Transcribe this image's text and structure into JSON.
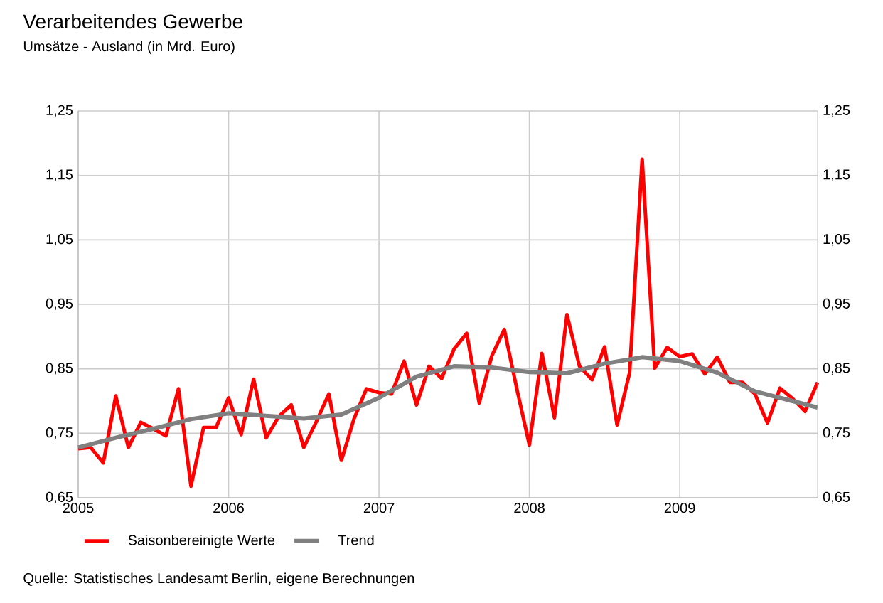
{
  "chart_data": {
    "type": "line",
    "title": "Verarbeitendes Gewerbe",
    "subtitle": "Umsätze - Ausland (in Mrd. Euro)",
    "x": [
      "2005-01",
      "2005-02",
      "2005-03",
      "2005-04",
      "2005-05",
      "2005-06",
      "2005-07",
      "2005-08",
      "2005-09",
      "2005-10",
      "2005-11",
      "2005-12",
      "2006-01",
      "2006-02",
      "2006-03",
      "2006-04",
      "2006-05",
      "2006-06",
      "2006-07",
      "2006-08",
      "2006-09",
      "2006-10",
      "2006-11",
      "2006-12",
      "2007-01",
      "2007-02",
      "2007-03",
      "2007-04",
      "2007-05",
      "2007-06",
      "2007-07",
      "2007-08",
      "2007-09",
      "2007-10",
      "2007-11",
      "2007-12",
      "2008-01",
      "2008-02",
      "2008-03",
      "2008-04",
      "2008-05",
      "2008-06",
      "2008-07",
      "2008-08",
      "2008-09",
      "2008-10",
      "2008-11",
      "2008-12",
      "2009-01",
      "2009-02",
      "2009-03",
      "2009-04",
      "2009-05",
      "2009-06",
      "2009-07",
      "2009-08",
      "2009-09",
      "2009-10",
      "2009-11",
      "2009-12"
    ],
    "series": [
      {
        "name": "Saisonbereinigte Werte",
        "color": "#ff0000",
        "values": [
          0.726,
          0.728,
          0.704,
          0.808,
          0.728,
          0.767,
          0.757,
          0.746,
          0.819,
          0.668,
          0.759,
          0.759,
          0.805,
          0.748,
          0.834,
          0.743,
          0.776,
          0.794,
          0.728,
          0.768,
          0.811,
          0.708,
          0.772,
          0.819,
          0.813,
          0.811,
          0.862,
          0.794,
          0.854,
          0.835,
          0.881,
          0.905,
          0.797,
          0.87,
          0.911,
          0.819,
          0.732,
          0.874,
          0.774,
          0.934,
          0.854,
          0.833,
          0.884,
          0.763,
          0.844,
          1.175,
          0.851,
          0.883,
          0.869,
          0.873,
          0.842,
          0.868,
          0.829,
          0.829,
          0.811,
          0.766,
          0.82,
          0.804,
          0.784,
          0.829
        ]
      },
      {
        "name": "Trend",
        "color": "#808080",
        "x": [
          "2005-01",
          "2005-04",
          "2005-07",
          "2005-10",
          "2006-01",
          "2006-04",
          "2006-07",
          "2006-10",
          "2007-01",
          "2007-04",
          "2007-07",
          "2007-10",
          "2008-01",
          "2008-04",
          "2008-07",
          "2008-10",
          "2009-01",
          "2009-04",
          "2009-07",
          "2009-10",
          "2009-12"
        ],
        "values": [
          0.728,
          0.743,
          0.757,
          0.772,
          0.781,
          0.777,
          0.773,
          0.779,
          0.805,
          0.838,
          0.854,
          0.852,
          0.845,
          0.843,
          0.858,
          0.868,
          0.862,
          0.844,
          0.815,
          0.8,
          0.79
        ]
      }
    ],
    "xlim": [
      "2005-01",
      "2009-12"
    ],
    "xticks": [
      {
        "value": "2005-01",
        "label": "2005"
      },
      {
        "value": "2006-01",
        "label": "2006"
      },
      {
        "value": "2007-01",
        "label": "2007"
      },
      {
        "value": "2008-01",
        "label": "2008"
      },
      {
        "value": "2009-01",
        "label": "2009"
      }
    ],
    "ylim": [
      0.65,
      1.25
    ],
    "yticks": [
      {
        "value": 0.65,
        "label": "0,65"
      },
      {
        "value": 0.75,
        "label": "0,75"
      },
      {
        "value": 0.85,
        "label": "0,85"
      },
      {
        "value": 0.95,
        "label": "0,95"
      },
      {
        "value": 1.05,
        "label": "1,05"
      },
      {
        "value": 1.15,
        "label": "1,15"
      },
      {
        "value": 1.25,
        "label": "1,25"
      }
    ],
    "y2lim": [
      0.65,
      1.25
    ],
    "y2ticks": [
      {
        "value": 0.65,
        "label": "0,65"
      },
      {
        "value": 0.75,
        "label": "0,75"
      },
      {
        "value": 0.85,
        "label": "0,85"
      },
      {
        "value": 0.95,
        "label": "0,95"
      },
      {
        "value": 1.05,
        "label": "1,05"
      },
      {
        "value": 1.15,
        "label": "1,15"
      },
      {
        "value": 1.25,
        "label": "1,25"
      }
    ],
    "grid": true,
    "legend": "bottom left",
    "marker": "none",
    "line_style": "solid",
    "annotations": [
      "Quelle: Statistisches Landesamt Berlin, eigene Berechnungen"
    ]
  }
}
